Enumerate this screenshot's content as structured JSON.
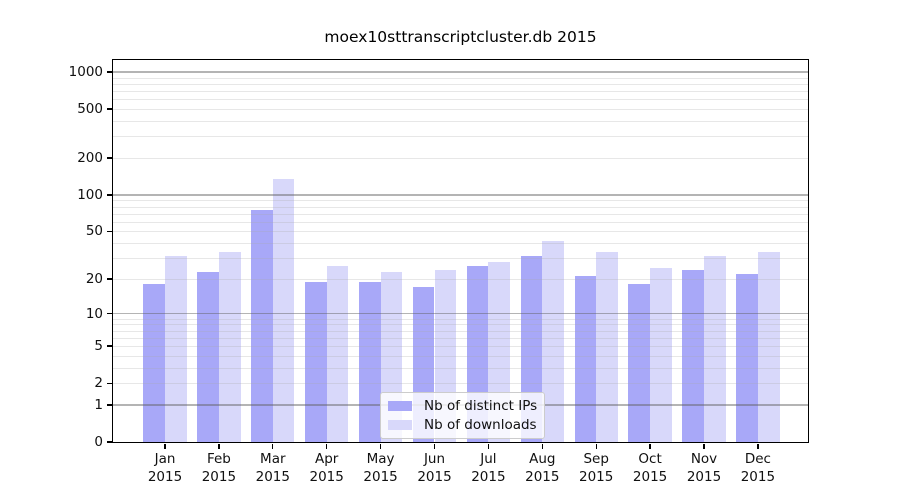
{
  "chart_data": {
    "type": "bar",
    "title": "moex10sttranscriptcluster.db 2015",
    "months": [
      "Jan",
      "Feb",
      "Mar",
      "Apr",
      "May",
      "Jun",
      "Jul",
      "Aug",
      "Sep",
      "Oct",
      "Nov",
      "Dec"
    ],
    "year": "2015",
    "series": [
      {
        "name": "Nb of distinct IPs",
        "color": "#a8a8f8",
        "values": [
          18,
          23,
          75,
          19,
          19,
          17,
          26,
          31,
          21,
          18,
          24,
          22
        ]
      },
      {
        "name": "Nb of downloads",
        "color": "#d8d8fa",
        "values": [
          31,
          34,
          134,
          26,
          23,
          24,
          28,
          42,
          34,
          25,
          31,
          34
        ]
      }
    ],
    "y_ticks": [
      0,
      1,
      2,
      5,
      10,
      20,
      50,
      100,
      200,
      500,
      1000
    ],
    "y_scale": "log10(value+1)",
    "ylim": [
      0,
      1300
    ],
    "grid": true,
    "legend_position": "lower center",
    "xlabel": "",
    "ylabel": ""
  },
  "colors": {
    "bar_distinct_ips": "#a8a8f8",
    "bar_downloads": "#d8d8fa",
    "grid_major": "#b0b0b0",
    "grid_minor": "#e7e7e7",
    "axis": "#000000",
    "background": "#ffffff"
  }
}
